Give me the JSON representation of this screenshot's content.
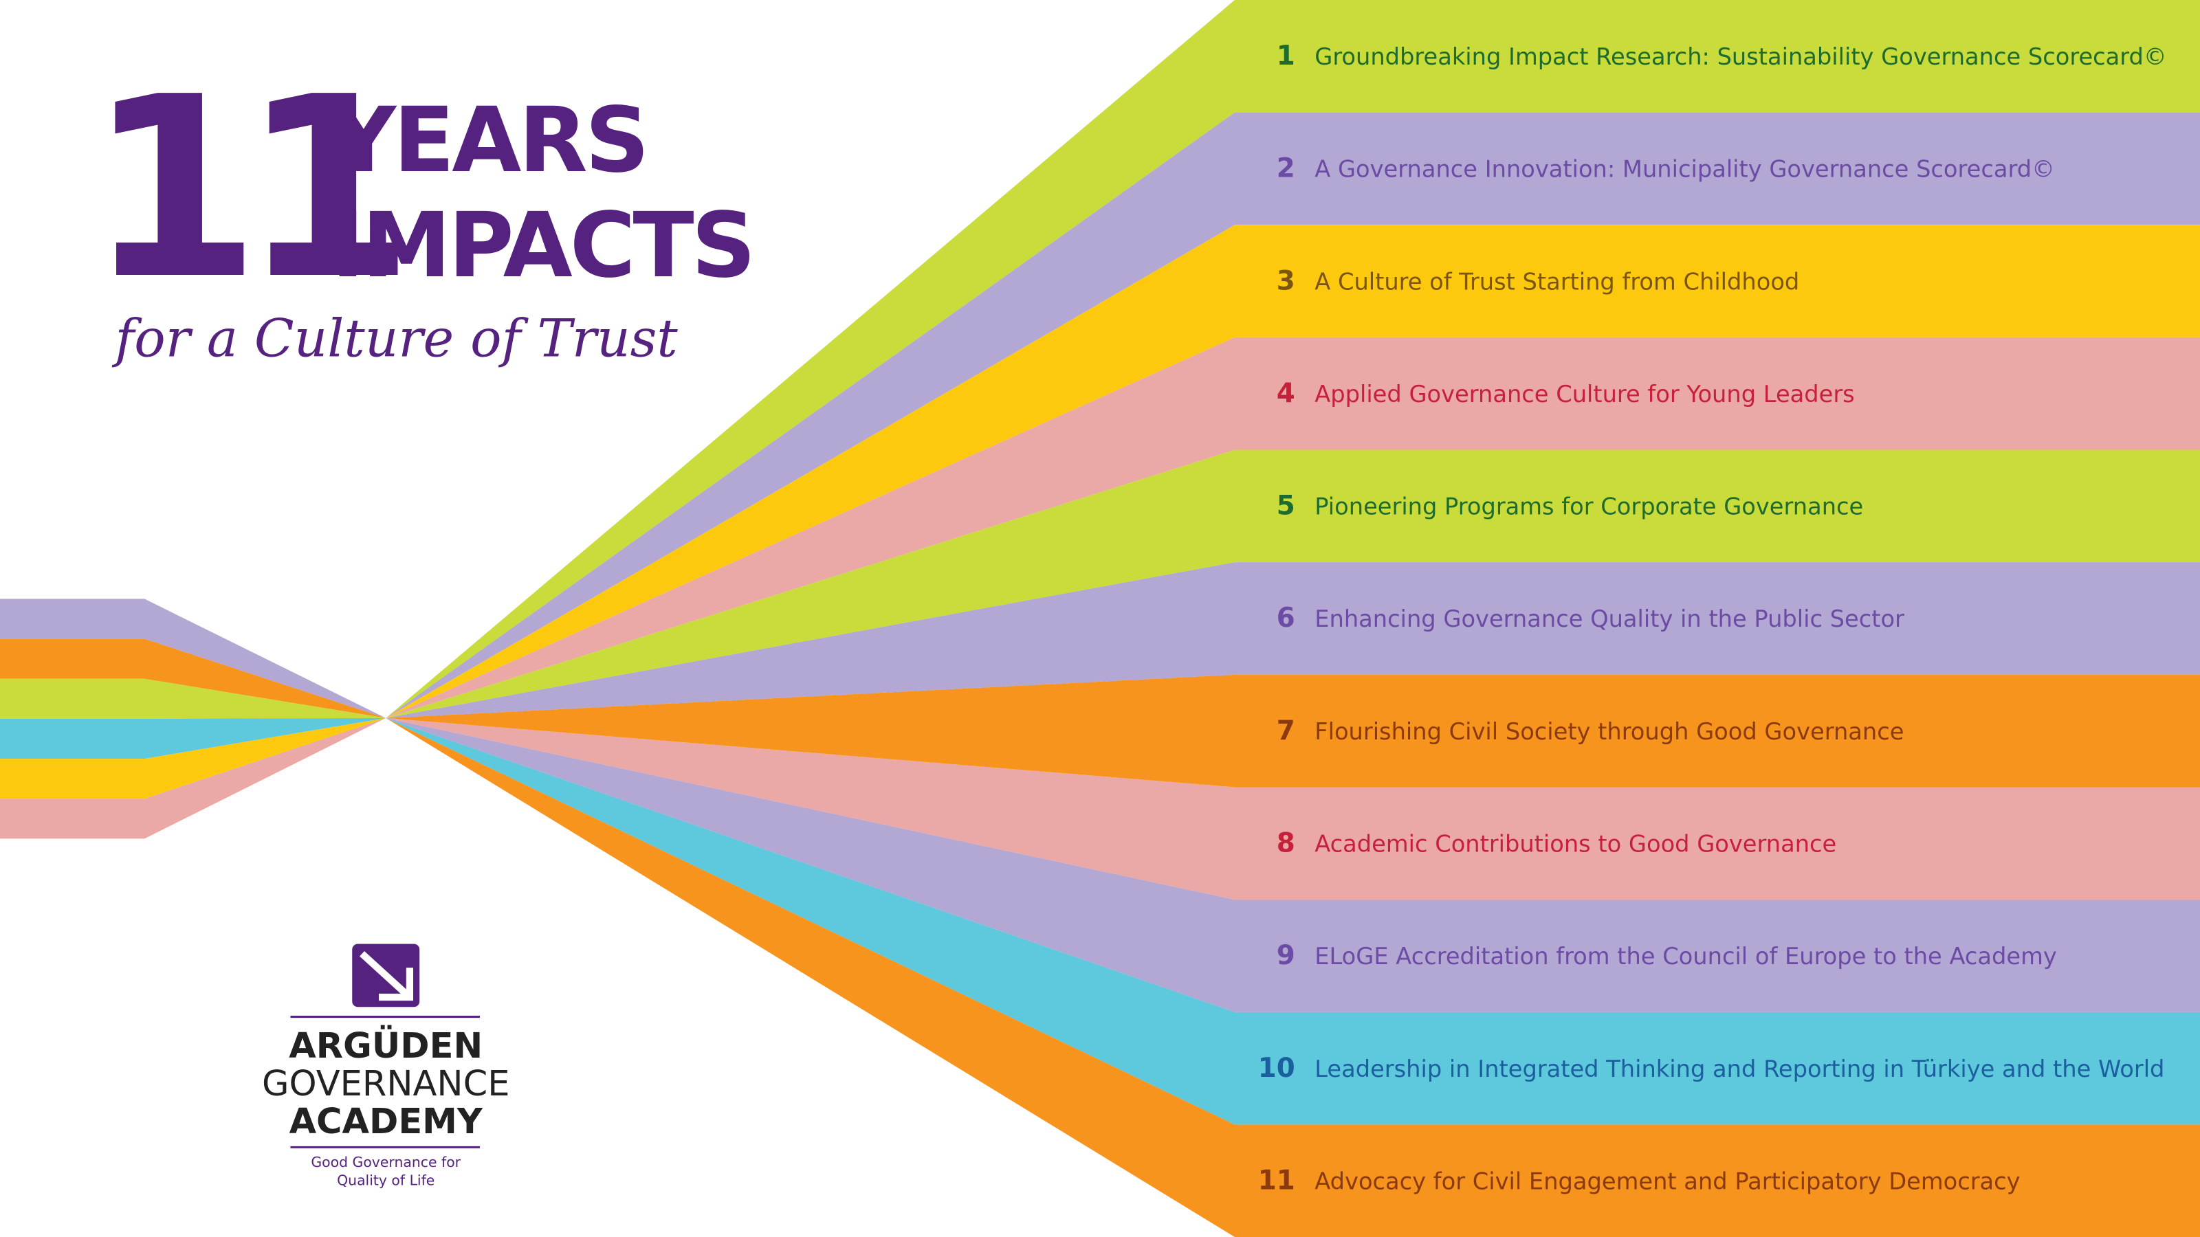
{
  "header": {
    "number": "11",
    "line1": "YEARS",
    "line2": "IMPACTS",
    "subtitle": "for a Culture of Trust"
  },
  "items": [
    {
      "number": "1",
      "text": "Groundbreaking Impact Research: Sustainability Governance Scorecard©"
    },
    {
      "number": "2",
      "text": "A Governance Innovation: Municipality Governance Scorecard©"
    },
    {
      "number": "3",
      "text": "A Culture of Trust Starting from Childhood"
    },
    {
      "number": "4",
      "text": "Applied Governance Culture for Young Leaders"
    },
    {
      "number": "5",
      "text": "Pioneering Programs for Corporate Governance"
    },
    {
      "number": "6",
      "text": "Enhancing Governance Quality in the Public Sector"
    },
    {
      "number": "7",
      "text": "Flourishing Civil Society through Good Governance"
    },
    {
      "number": "8",
      "text": "Academic Contributions to Good Governance"
    },
    {
      "number": "9",
      "text": "ELoGE Accreditation from the Council of Europe to the Academy"
    },
    {
      "number": "10",
      "text": "Leadership in Integrated Thinking and Reporting in Türkiye and the World"
    },
    {
      "number": "11",
      "text": "Advocacy for Civil Engagement and Participatory Democracy"
    }
  ],
  "logo": {
    "line1": "ARGÜDEN",
    "line2": "GOVERNANCE",
    "line3": "ACADEMY",
    "tagline1": "Good Governance for",
    "tagline2": "Quality of Life"
  }
}
